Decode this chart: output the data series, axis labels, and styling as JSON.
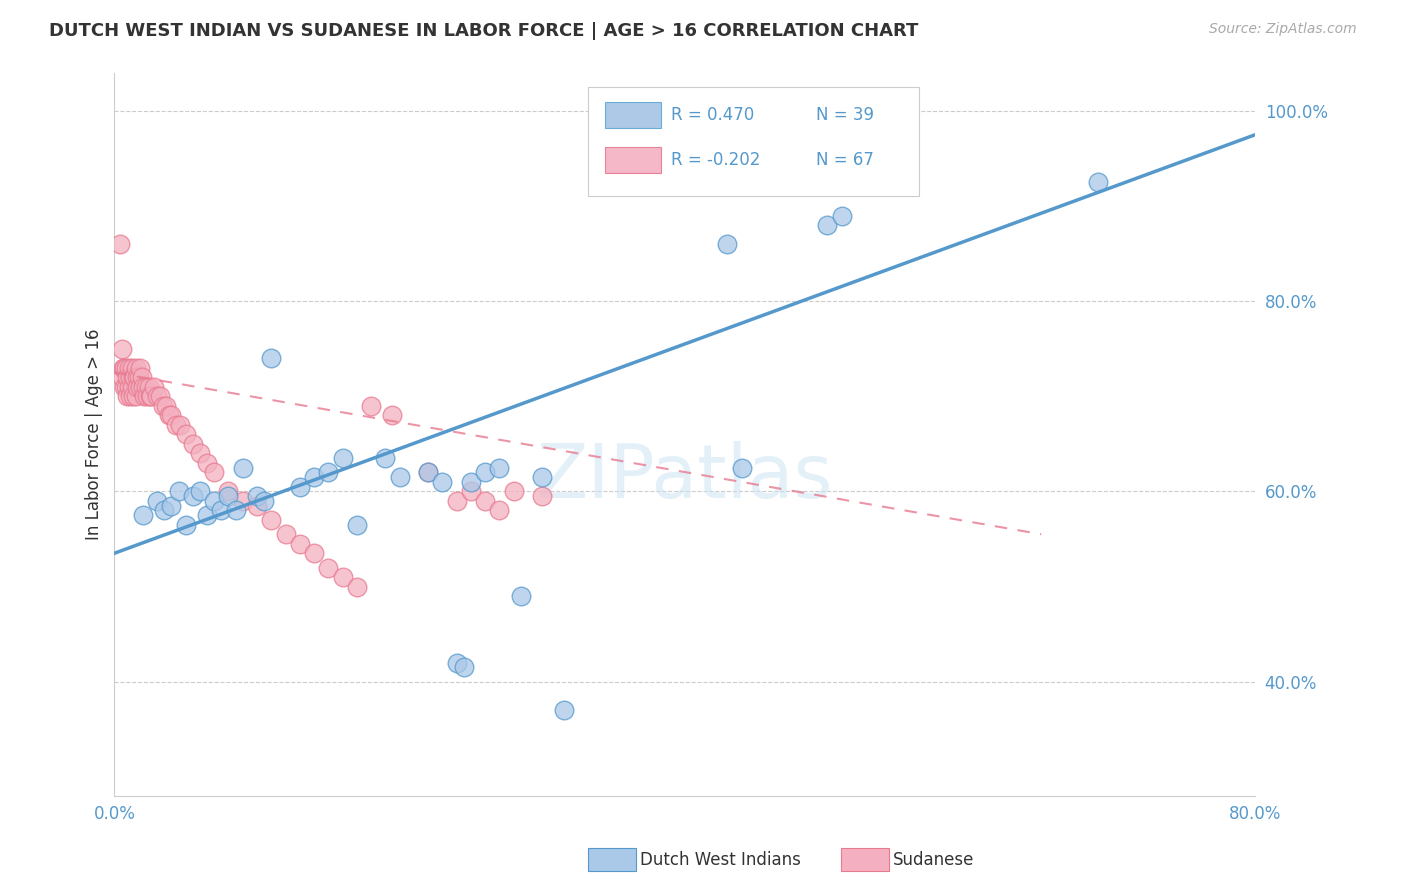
{
  "title": "DUTCH WEST INDIAN VS SUDANESE IN LABOR FORCE | AGE > 16 CORRELATION CHART",
  "source": "Source: ZipAtlas.com",
  "ylabel": "In Labor Force | Age > 16",
  "xmin": 0.0,
  "xmax": 0.8,
  "ymin": 0.28,
  "ymax": 1.04,
  "xticks": [
    0.0,
    0.1,
    0.2,
    0.3,
    0.4,
    0.5,
    0.6,
    0.7,
    0.8
  ],
  "yticks": [
    0.4,
    0.6,
    0.8,
    1.0
  ],
  "legend_entries": [
    {
      "label": "Dutch West Indians",
      "color": "#6aaed6",
      "fill": "#aec8e8",
      "R": "0.470",
      "N": "39"
    },
    {
      "label": "Sudanese",
      "color": "#e8829a",
      "fill": "#f4b8c8",
      "R": "-0.202",
      "N": "67"
    }
  ],
  "blue_scatter_x": [
    0.02,
    0.03,
    0.035,
    0.04,
    0.045,
    0.05,
    0.055,
    0.06,
    0.065,
    0.07,
    0.075,
    0.08,
    0.085,
    0.09,
    0.1,
    0.105,
    0.11,
    0.13,
    0.14,
    0.15,
    0.16,
    0.17,
    0.19,
    0.2,
    0.22,
    0.23,
    0.24,
    0.245,
    0.25,
    0.26,
    0.27,
    0.285,
    0.3,
    0.315,
    0.43,
    0.44,
    0.5,
    0.51,
    0.69
  ],
  "blue_scatter_y": [
    0.575,
    0.59,
    0.58,
    0.585,
    0.6,
    0.565,
    0.595,
    0.6,
    0.575,
    0.59,
    0.58,
    0.595,
    0.58,
    0.625,
    0.595,
    0.59,
    0.74,
    0.605,
    0.615,
    0.62,
    0.635,
    0.565,
    0.635,
    0.615,
    0.62,
    0.61,
    0.42,
    0.415,
    0.61,
    0.62,
    0.625,
    0.49,
    0.615,
    0.37,
    0.86,
    0.625,
    0.88,
    0.89,
    0.925
  ],
  "pink_scatter_x": [
    0.004,
    0.005,
    0.005,
    0.006,
    0.007,
    0.007,
    0.008,
    0.008,
    0.009,
    0.009,
    0.01,
    0.01,
    0.011,
    0.011,
    0.012,
    0.012,
    0.013,
    0.013,
    0.014,
    0.015,
    0.015,
    0.016,
    0.016,
    0.017,
    0.018,
    0.018,
    0.019,
    0.02,
    0.021,
    0.022,
    0.023,
    0.024,
    0.025,
    0.026,
    0.028,
    0.03,
    0.032,
    0.034,
    0.036,
    0.038,
    0.04,
    0.043,
    0.046,
    0.05,
    0.055,
    0.06,
    0.065,
    0.07,
    0.08,
    0.09,
    0.1,
    0.11,
    0.12,
    0.13,
    0.14,
    0.15,
    0.16,
    0.17,
    0.18,
    0.195,
    0.22,
    0.24,
    0.25,
    0.26,
    0.27,
    0.28,
    0.3
  ],
  "pink_scatter_y": [
    0.86,
    0.75,
    0.72,
    0.73,
    0.73,
    0.71,
    0.73,
    0.71,
    0.72,
    0.7,
    0.73,
    0.71,
    0.72,
    0.7,
    0.73,
    0.71,
    0.72,
    0.7,
    0.72,
    0.73,
    0.7,
    0.72,
    0.71,
    0.72,
    0.73,
    0.71,
    0.72,
    0.71,
    0.7,
    0.71,
    0.7,
    0.71,
    0.7,
    0.7,
    0.71,
    0.7,
    0.7,
    0.69,
    0.69,
    0.68,
    0.68,
    0.67,
    0.67,
    0.66,
    0.65,
    0.64,
    0.63,
    0.62,
    0.6,
    0.59,
    0.585,
    0.57,
    0.555,
    0.545,
    0.535,
    0.52,
    0.51,
    0.5,
    0.69,
    0.68,
    0.62,
    0.59,
    0.6,
    0.59,
    0.58,
    0.6,
    0.595
  ],
  "blue_line_x": [
    0.0,
    0.8
  ],
  "blue_line_y": [
    0.535,
    0.975
  ],
  "pink_line_x": [
    0.0,
    0.65
  ],
  "pink_line_y": [
    0.725,
    0.555
  ],
  "blue_color": "#5599cc",
  "pink_color": "#e87a90",
  "blue_fill": "#aac8e8",
  "pink_fill": "#f4b0c0",
  "title_color": "#333333",
  "axis_color": "#5599cc",
  "grid_color": "#cccccc",
  "watermark": "ZIPatlas",
  "background_color": "#ffffff"
}
